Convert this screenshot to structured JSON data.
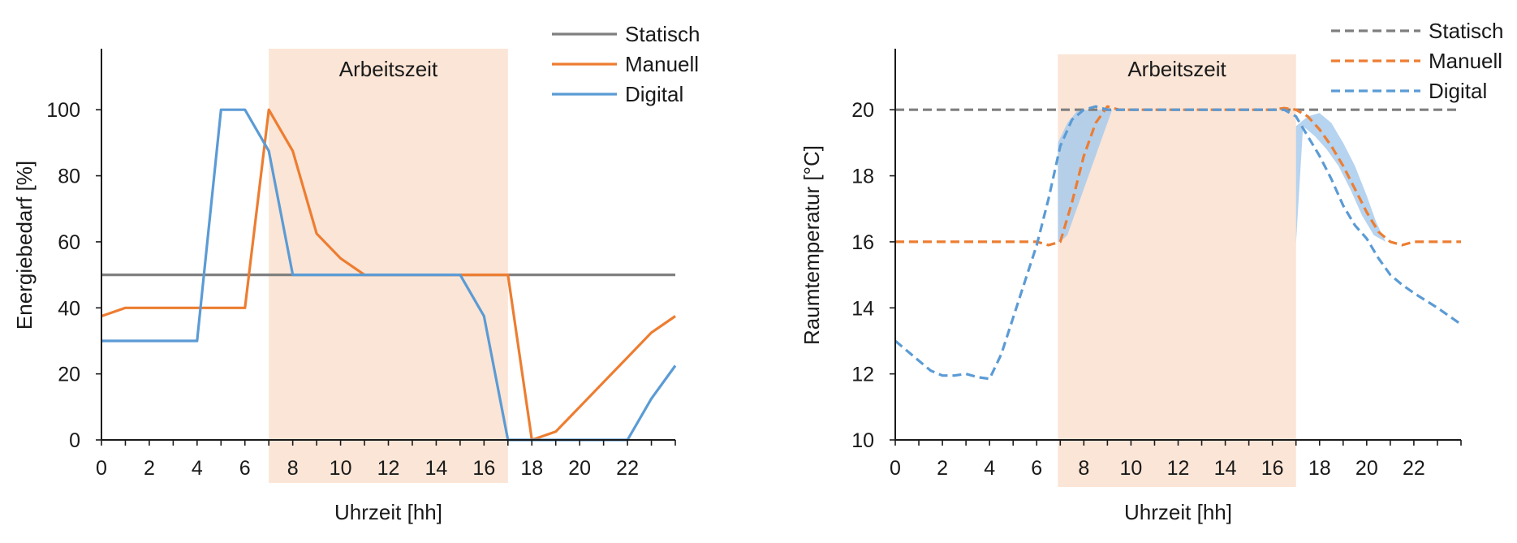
{
  "colors": {
    "statisch": "#7f7f7f",
    "manuell": "#ed7d31",
    "digital": "#5b9bd5",
    "arbeitszeit_band": "#fbe5d6",
    "shade_blue": "#a9cbec",
    "axis": "#1a1a1a"
  },
  "chart_data": [
    {
      "type": "line",
      "title": "",
      "xlabel": "Uhrzeit [hh]",
      "ylabel": "Energiebedarf [%]",
      "xlim": [
        0,
        24
      ],
      "ylim": [
        0,
        118
      ],
      "xticks": [
        0,
        2,
        4,
        6,
        8,
        10,
        12,
        14,
        16,
        18,
        20,
        22
      ],
      "yticks": [
        0,
        20,
        40,
        60,
        80,
        100
      ],
      "legend_position": "top-right",
      "band": {
        "label": "Arbeitszeit",
        "x_start": 7,
        "x_end": 17
      },
      "series": [
        {
          "name": "Statisch",
          "dash": "solid",
          "x": [
            0,
            24
          ],
          "y": [
            50,
            50
          ]
        },
        {
          "name": "Manuell",
          "dash": "solid",
          "x": [
            0,
            1,
            2,
            3,
            4,
            5,
            6,
            7,
            8,
            9,
            10,
            11,
            12,
            13,
            14,
            15,
            16,
            17,
            18,
            19,
            20,
            21,
            22,
            23,
            24
          ],
          "y": [
            37.5,
            40,
            40,
            40,
            40,
            40,
            40,
            100,
            87.5,
            62.5,
            55,
            50,
            50,
            50,
            50,
            50,
            50,
            50,
            0,
            2.5,
            10,
            17.5,
            25,
            32.5,
            37.5
          ]
        },
        {
          "name": "Digital",
          "dash": "solid",
          "x": [
            0,
            1,
            2,
            3,
            4,
            5,
            6,
            7,
            8,
            9,
            10,
            11,
            12,
            13,
            14,
            15,
            16,
            17,
            18,
            19,
            20,
            21,
            22,
            23,
            24
          ],
          "y": [
            30,
            30,
            30,
            30,
            30,
            100,
            100,
            87.5,
            50,
            50,
            50,
            50,
            50,
            50,
            50,
            50,
            37.5,
            0,
            0,
            0,
            0,
            0,
            0,
            12.5,
            22.5
          ]
        }
      ]
    },
    {
      "type": "line",
      "title": "",
      "xlabel": "Uhrzeit [hh]",
      "ylabel": "Raumtemperatur [°C]",
      "xlim": [
        0,
        24
      ],
      "ylim": [
        10,
        21.8
      ],
      "xticks": [
        0,
        2,
        4,
        6,
        8,
        10,
        12,
        14,
        16,
        18,
        20,
        22
      ],
      "yticks": [
        10,
        12,
        14,
        16,
        18,
        20
      ],
      "legend_position": "top-right",
      "band": {
        "label": "Arbeitszeit",
        "x_start": 6.9,
        "x_end": 17
      },
      "shaded_areas": [
        {
          "x": [
            6.9,
            7.3,
            7.7,
            8.2,
            8.7,
            9.2,
            8.8,
            8.4,
            8.0,
            7.6,
            7.3,
            7.0,
            6.9
          ],
          "y": [
            19.0,
            19.6,
            19.95,
            20.0,
            20.0,
            20.0,
            19.2,
            18.4,
            17.6,
            16.8,
            16.2,
            16.0,
            16.0
          ]
        },
        {
          "x": [
            17.0,
            17.5,
            18.0,
            18.5,
            19.0,
            19.5,
            20.0,
            20.4,
            20.8,
            20.3,
            19.8,
            19.3,
            18.8,
            18.3,
            17.8,
            17.3,
            17.0
          ],
          "y": [
            19.5,
            19.8,
            19.9,
            19.6,
            19.0,
            18.3,
            17.4,
            16.6,
            16.0,
            16.2,
            16.8,
            17.6,
            18.3,
            18.8,
            19.2,
            19.5,
            15.95
          ]
        }
      ],
      "series": [
        {
          "name": "Statisch",
          "dash": "dashed",
          "x": [
            0,
            24
          ],
          "y": [
            20,
            20
          ]
        },
        {
          "name": "Manuell",
          "dash": "dashed",
          "x": [
            0,
            1,
            2,
            3,
            4,
            5,
            6,
            6.5,
            7,
            7.5,
            8,
            8.5,
            9,
            9.5,
            10,
            11,
            12,
            13,
            14,
            15,
            16,
            16.5,
            17,
            17.5,
            18,
            18.5,
            19,
            19.5,
            20,
            20.5,
            21,
            21.5,
            22,
            23,
            24
          ],
          "y": [
            16,
            16,
            16,
            16,
            16,
            16,
            16,
            15.9,
            16,
            17.2,
            18.6,
            19.6,
            20.1,
            20,
            20,
            20,
            20,
            20,
            20,
            20,
            20,
            20.05,
            20,
            19.8,
            19.4,
            18.9,
            18.3,
            17.6,
            16.9,
            16.3,
            16.0,
            15.9,
            16,
            16,
            16
          ]
        },
        {
          "name": "Digital",
          "dash": "dashed",
          "x": [
            0,
            0.5,
            1,
            1.5,
            2,
            2.5,
            3,
            3.5,
            4,
            4.5,
            5,
            5.5,
            6,
            6.5,
            7,
            7.5,
            8,
            8.5,
            9,
            10,
            11,
            12,
            13,
            14,
            15,
            16,
            16.5,
            17,
            17.5,
            18,
            18.5,
            19,
            19.5,
            20,
            20.5,
            21,
            21.5,
            22,
            23,
            24
          ],
          "y": [
            13.0,
            12.7,
            12.4,
            12.1,
            11.95,
            11.95,
            12.0,
            11.9,
            11.85,
            12.6,
            13.7,
            14.8,
            15.9,
            17.3,
            18.9,
            19.7,
            20.0,
            20.1,
            20.0,
            20,
            20,
            20,
            20,
            20,
            20,
            20,
            20,
            19.8,
            19.2,
            18.6,
            17.9,
            17.1,
            16.5,
            16.1,
            15.5,
            15.0,
            14.7,
            14.45,
            14.0,
            13.5
          ]
        }
      ]
    }
  ]
}
